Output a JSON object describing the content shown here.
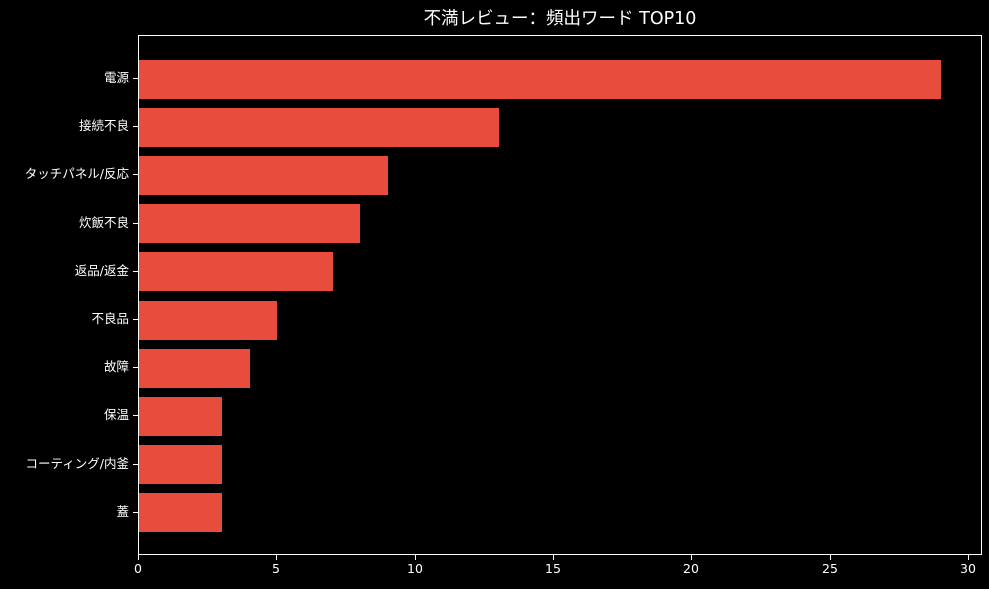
{
  "chart_data": {
    "type": "bar",
    "orientation": "horizontal",
    "title": "不満レビュー：頻出ワード TOP10",
    "categories": [
      "電源",
      "接続不良",
      "タッチパネル/反応",
      "炊飯不良",
      "返品/返金",
      "不良品",
      "故障",
      "保温",
      "コーティング/内釜",
      "蓋"
    ],
    "values": [
      29,
      13,
      9,
      8,
      7,
      5,
      4,
      3,
      3,
      3
    ],
    "xlabel": "",
    "ylabel": "",
    "xlim": [
      0,
      30.5
    ],
    "xticks": [
      0,
      5,
      10,
      15,
      20,
      25,
      30
    ],
    "grid": false,
    "legend_position": "none",
    "bar_color": "#e74c3c",
    "background_color": "#000000",
    "text_color": "#ffffff",
    "axis_color": "#ffffff"
  }
}
